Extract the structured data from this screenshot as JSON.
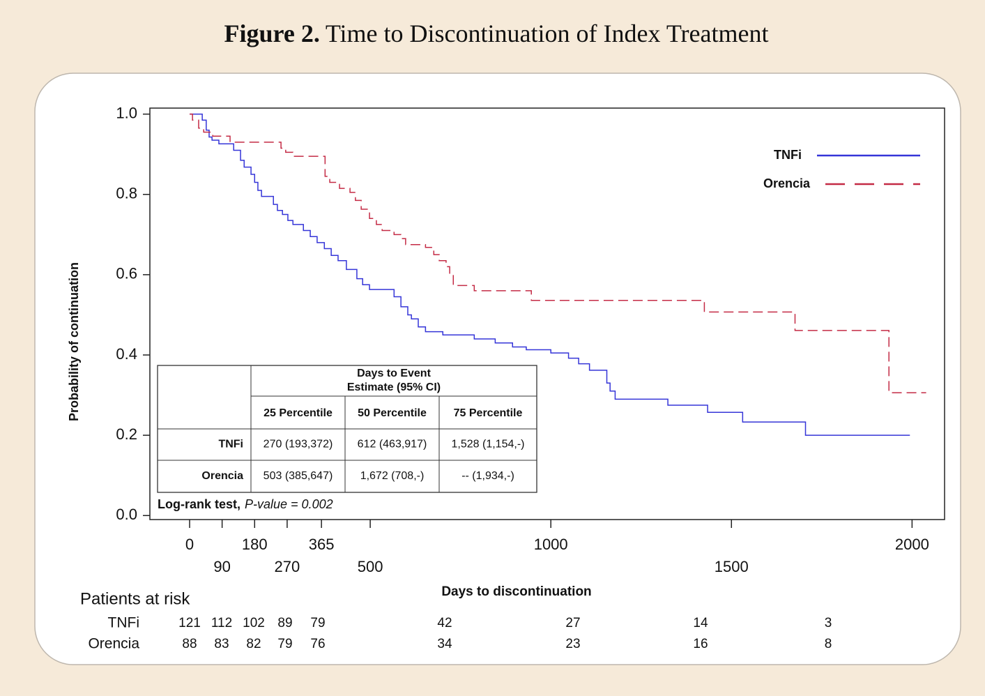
{
  "chart_data": {
    "type": "step-line",
    "title_label": "Figure 2.",
    "title": "Time to Discontinuation of Index Treatment",
    "x_label": "Days to discontinuation",
    "y_label": "Probability of continuation",
    "xlim": [
      -110,
      2090
    ],
    "ylim": [
      -0.01,
      1.015
    ],
    "xticks": [
      0,
      90,
      180,
      270,
      365,
      500,
      1000,
      1500,
      2000
    ],
    "yticks": [
      {
        "value": 0,
        "label": "0.0"
      },
      {
        "value": 0.2,
        "label": "0.2"
      },
      {
        "value": 0.4,
        "label": "0.4"
      },
      {
        "value": 0.6,
        "label": "0.6"
      },
      {
        "value": 0.8,
        "label": "0.8"
      },
      {
        "value": 1,
        "label": "1.0"
      }
    ],
    "grid": false,
    "legend": "top-right",
    "series": [
      {
        "name": "TNFi",
        "color": "#3535d8",
        "dash": "solid",
        "x": [
          0,
          35,
          35,
          46,
          46,
          54,
          54,
          62,
          62,
          81,
          81,
          122,
          122,
          141,
          141,
          151,
          151,
          170,
          170,
          180,
          180,
          189,
          189,
          199,
          199,
          232,
          232,
          243,
          243,
          257,
          257,
          272,
          272,
          286,
          286,
          315,
          315,
          334,
          334,
          353,
          353,
          373,
          373,
          392,
          392,
          411,
          411,
          434,
          434,
          463,
          463,
          479,
          479,
          498,
          498,
          566,
          566,
          585,
          585,
          604,
          604,
          614,
          614,
          633,
          633,
          653,
          653,
          701,
          701,
          788,
          788,
          846,
          846,
          894,
          894,
          932,
          932,
          1000,
          1000,
          1049,
          1049,
          1077,
          1077,
          1107,
          1107,
          1155,
          1155,
          1164,
          1164,
          1178,
          1178,
          1324,
          1324,
          1434,
          1434,
          1531,
          1531,
          1705,
          1705,
          1994
        ],
        "values": [
          1.0,
          1.0,
          0.985,
          0.985,
          0.96,
          0.96,
          0.943,
          0.943,
          0.935,
          0.935,
          0.926,
          0.926,
          0.91,
          0.91,
          0.885,
          0.885,
          0.868,
          0.868,
          0.85,
          0.85,
          0.83,
          0.83,
          0.81,
          0.81,
          0.795,
          0.795,
          0.775,
          0.775,
          0.76,
          0.76,
          0.75,
          0.75,
          0.735,
          0.735,
          0.725,
          0.725,
          0.71,
          0.71,
          0.695,
          0.695,
          0.68,
          0.68,
          0.665,
          0.665,
          0.648,
          0.648,
          0.635,
          0.635,
          0.613,
          0.613,
          0.59,
          0.59,
          0.575,
          0.575,
          0.563,
          0.563,
          0.545,
          0.545,
          0.52,
          0.52,
          0.5,
          0.5,
          0.49,
          0.49,
          0.47,
          0.47,
          0.458,
          0.458,
          0.45,
          0.45,
          0.44,
          0.44,
          0.43,
          0.43,
          0.42,
          0.42,
          0.413,
          0.413,
          0.405,
          0.405,
          0.392,
          0.392,
          0.378,
          0.378,
          0.362,
          0.362,
          0.33,
          0.33,
          0.31,
          0.31,
          0.29,
          0.29,
          0.275,
          0.275,
          0.257,
          0.257,
          0.233,
          0.233,
          0.2,
          0.2
        ]
      },
      {
        "name": "Orencia",
        "color": "#c42b45",
        "dash": "dashed",
        "x": [
          0,
          8,
          8,
          25,
          25,
          39,
          39,
          64,
          64,
          112,
          112,
          253,
          253,
          266,
          266,
          286,
          286,
          375,
          375,
          388,
          388,
          415,
          415,
          444,
          444,
          459,
          459,
          475,
          475,
          498,
          498,
          517,
          517,
          533,
          533,
          566,
          566,
          585,
          585,
          598,
          598,
          653,
          653,
          676,
          676,
          691,
          691,
          710,
          710,
          720,
          720,
          730,
          730,
          788,
          788,
          946,
          946,
          1425,
          1425,
          1676,
          1676,
          1936,
          1936,
          2039
        ],
        "values": [
          1.0,
          1.0,
          0.985,
          0.985,
          0.965,
          0.965,
          0.955,
          0.955,
          0.945,
          0.945,
          0.93,
          0.93,
          0.915,
          0.915,
          0.905,
          0.905,
          0.895,
          0.895,
          0.845,
          0.845,
          0.83,
          0.83,
          0.815,
          0.815,
          0.805,
          0.805,
          0.785,
          0.785,
          0.763,
          0.763,
          0.74,
          0.74,
          0.725,
          0.725,
          0.71,
          0.71,
          0.7,
          0.7,
          0.69,
          0.69,
          0.675,
          0.675,
          0.668,
          0.668,
          0.65,
          0.65,
          0.635,
          0.635,
          0.62,
          0.62,
          0.6,
          0.6,
          0.573,
          0.573,
          0.56,
          0.56,
          0.536,
          0.536,
          0.507,
          0.507,
          0.461,
          0.461,
          0.306,
          0.306
        ]
      }
    ],
    "inset_table": {
      "header": [
        "Days to Event",
        "Estimate (95% CI)"
      ],
      "columns": [
        "25 Percentile",
        "50 Percentile",
        "75 Percentile"
      ],
      "rows": [
        {
          "name": "TNFi",
          "cells": [
            "270 (193,372)",
            "612 (463,917)",
            "1,528 (1,154,-)"
          ]
        },
        {
          "name": "Orencia",
          "cells": [
            "503 (385,647)",
            "1,672 (708,-)",
            "-- (1,934,-)"
          ]
        }
      ],
      "footnote": {
        "test": "Log-rank test,",
        "p_value": "P-value = 0.002"
      }
    },
    "at_risk": {
      "title": "Patients at risk",
      "rows": [
        {
          "name": "TNFi",
          "values": [
            121,
            112,
            102,
            89,
            79,
            42,
            27,
            14,
            3
          ]
        },
        {
          "name": "Orencia",
          "values": [
            88,
            83,
            82,
            79,
            76,
            34,
            23,
            16,
            8
          ]
        }
      ]
    }
  }
}
